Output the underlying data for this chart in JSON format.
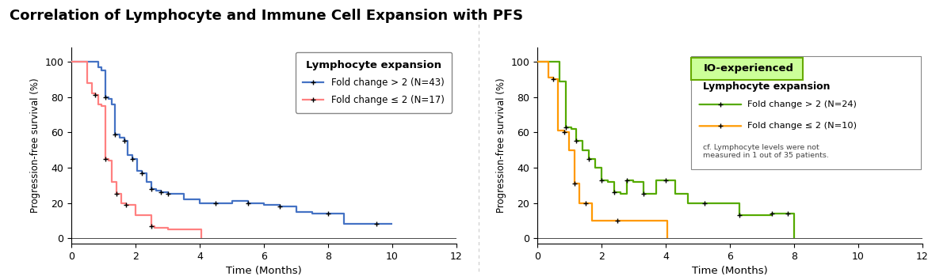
{
  "title": "Correlation of Lymphocyte and Immune Cell Expansion with PFS",
  "title_fontsize": 13,
  "title_fontweight": "bold",
  "left": {
    "ylabel": "Progression-free survival (%)",
    "xlabel": "Time (Months)",
    "xlim": [
      0,
      12
    ],
    "ylim": [
      -3,
      108
    ],
    "xticks": [
      0,
      2,
      4,
      6,
      8,
      10,
      12
    ],
    "yticks": [
      0,
      20,
      40,
      60,
      80,
      100
    ],
    "legend_title": "Lymphocyte expansion",
    "legend_label1": "Fold change > 2 (N=43)",
    "legend_label2": "Fold change ≤ 2 (N=17)",
    "color1": "#4472C4",
    "color2": "#FF8080",
    "curve1_x": [
      0,
      0.7,
      0.85,
      0.95,
      1.05,
      1.15,
      1.25,
      1.35,
      1.5,
      1.65,
      1.75,
      1.9,
      2.05,
      2.2,
      2.35,
      2.5,
      2.65,
      2.8,
      3.0,
      3.5,
      4.0,
      4.5,
      5.0,
      5.5,
      6.0,
      6.5,
      7.0,
      7.5,
      8.0,
      8.5,
      9.0,
      9.5,
      10.0
    ],
    "curve1_y": [
      100,
      100,
      97,
      95,
      80,
      79,
      76,
      59,
      57,
      55,
      47,
      45,
      38,
      37,
      32,
      28,
      27,
      26,
      25,
      22,
      20,
      20,
      21,
      20,
      19,
      18,
      15,
      14,
      14,
      8,
      8,
      8,
      8
    ],
    "curve2_x": [
      0,
      0.5,
      0.65,
      0.75,
      0.85,
      0.95,
      1.05,
      1.15,
      1.25,
      1.4,
      1.55,
      1.7,
      2.0,
      2.5,
      2.6,
      3.0,
      4.0,
      4.05
    ],
    "curve2_y": [
      100,
      88,
      82,
      81,
      76,
      75,
      45,
      44,
      32,
      25,
      20,
      19,
      13,
      7,
      6,
      5,
      5,
      0
    ],
    "censor1_x": [
      1.05,
      1.35,
      1.65,
      1.9,
      2.2,
      2.5,
      2.8,
      3.0,
      4.5,
      5.5,
      6.5,
      8.0,
      9.5
    ],
    "censor2_x": [
      0.75,
      1.05,
      1.4,
      1.7,
      2.5
    ]
  },
  "right": {
    "ylabel": "Progression-free survival (%)",
    "xlabel": "Time (Months)",
    "xlim": [
      0,
      12
    ],
    "ylim": [
      -3,
      108
    ],
    "xticks": [
      0,
      2,
      4,
      6,
      8,
      10,
      12
    ],
    "yticks": [
      0,
      20,
      40,
      60,
      80,
      100
    ],
    "io_label": "IO-experienced",
    "io_bg": "#CCFF99",
    "io_border": "#66AA00",
    "legend_title": "Lymphocyte expansion",
    "legend_label1": "Fold change > 2 (N=24)",
    "legend_label2": "Fold change ≤ 2 (N=10)",
    "footnote": "cf. Lymphocyte levels were not\nmeasured in 1 out of 35 patients.",
    "color1": "#55AA00",
    "color2": "#FF9900",
    "curve1_x": [
      0,
      0.5,
      0.7,
      0.9,
      1.05,
      1.2,
      1.4,
      1.6,
      1.8,
      2.0,
      2.2,
      2.4,
      2.6,
      2.8,
      3.0,
      3.3,
      3.7,
      4.0,
      4.3,
      4.7,
      5.2,
      5.8,
      6.3,
      6.8,
      7.3,
      7.8,
      8.0
    ],
    "curve1_y": [
      100,
      100,
      89,
      63,
      62,
      55,
      50,
      45,
      40,
      33,
      32,
      26,
      25,
      33,
      32,
      25,
      33,
      33,
      25,
      20,
      20,
      20,
      13,
      13,
      14,
      14,
      0
    ],
    "curve2_x": [
      0,
      0.35,
      0.5,
      0.65,
      0.85,
      1.0,
      1.15,
      1.3,
      1.5,
      1.7,
      2.0,
      2.5,
      4.0,
      4.05
    ],
    "curve2_y": [
      100,
      91,
      90,
      61,
      60,
      50,
      31,
      20,
      20,
      10,
      10,
      10,
      10,
      0
    ],
    "censor1_x": [
      0.9,
      1.2,
      1.6,
      2.0,
      2.4,
      2.8,
      3.3,
      4.0,
      5.2,
      6.3,
      7.3,
      7.8
    ],
    "censor2_x": [
      0.5,
      0.85,
      1.15,
      1.5,
      2.5
    ]
  }
}
